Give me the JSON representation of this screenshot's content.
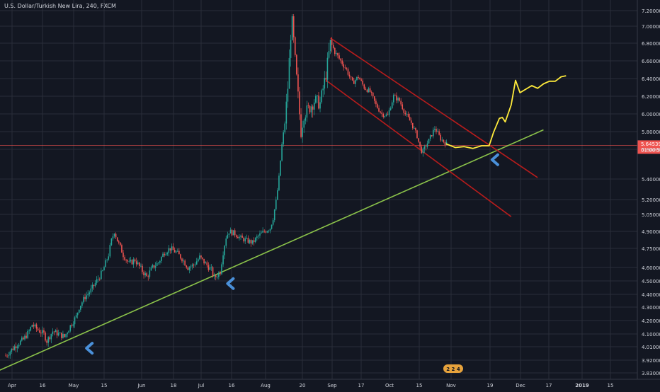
{
  "header": {
    "title": "U.S. Dollar/Turkish New Lira, 240, FXCM"
  },
  "chart_data": {
    "type": "candlestick",
    "title": "U.S. Dollar/Turkish New Lira, 240, FXCM",
    "symbol": "USDTRY",
    "interval": "240",
    "source": "FXCM",
    "ylim": [
      3.8,
      7.25
    ],
    "y_ticks": [
      "7.20000",
      "7.00000",
      "6.80000",
      "6.60000",
      "6.40000",
      "6.20000",
      "6.00000",
      "5.80000",
      "5.60000",
      "5.40000",
      "5.20000",
      "5.05000",
      "4.90000",
      "4.75000",
      "4.60000",
      "4.50000",
      "4.40000",
      "4.30000",
      "4.20000",
      "4.10000",
      "4.01000",
      "3.92000",
      "3.83000"
    ],
    "x_ticks": [
      "Apr",
      "16",
      "May",
      "15",
      "Jun",
      "18",
      "Jul",
      "16",
      "Aug",
      "20",
      "Sep",
      "17",
      "Oct",
      "15",
      "Nov",
      "19",
      "Dec",
      "17",
      "2019",
      "15"
    ],
    "current_price": "5.64539",
    "countdown": "01:00:51",
    "grid": true,
    "colors": {
      "background": "#131722",
      "grid": "#2a2e39",
      "up": "#26a69a",
      "down": "#ef5350",
      "trendline": "#8bc34a",
      "channel": "#b71c1c",
      "projection": "#ffeb3b",
      "arrow": "#4a90d9",
      "price_line": "#ef5350",
      "axis_text": "#d1d4dc"
    },
    "price_path": [
      [
        0,
        3.95
      ],
      [
        2,
        3.99
      ],
      [
        4,
        4.03
      ],
      [
        6,
        4.06
      ],
      [
        8,
        4.12
      ],
      [
        9,
        4.17
      ],
      [
        11,
        4.13
      ],
      [
        13,
        4.1
      ],
      [
        14,
        4.05
      ],
      [
        16,
        4.12
      ],
      [
        18,
        4.1
      ],
      [
        20,
        4.08
      ],
      [
        22,
        4.16
      ],
      [
        24,
        4.23
      ],
      [
        25,
        4.3
      ],
      [
        27,
        4.38
      ],
      [
        29,
        4.43
      ],
      [
        31,
        4.5
      ],
      [
        33,
        4.57
      ],
      [
        35,
        4.7
      ],
      [
        36,
        4.82
      ],
      [
        37,
        4.9
      ],
      [
        38,
        4.82
      ],
      [
        40,
        4.7
      ],
      [
        42,
        4.63
      ],
      [
        44,
        4.66
      ],
      [
        46,
        4.59
      ],
      [
        48,
        4.53
      ],
      [
        50,
        4.6
      ],
      [
        52,
        4.64
      ],
      [
        54,
        4.72
      ],
      [
        56,
        4.75
      ],
      [
        58,
        4.72
      ],
      [
        60,
        4.67
      ],
      [
        62,
        4.6
      ],
      [
        64,
        4.62
      ],
      [
        66,
        4.68
      ],
      [
        68,
        4.63
      ],
      [
        70,
        4.58
      ],
      [
        71,
        4.52
      ],
      [
        73,
        4.57
      ],
      [
        74,
        4.72
      ],
      [
        75,
        4.85
      ],
      [
        76,
        4.9
      ],
      [
        78,
        4.88
      ],
      [
        80,
        4.84
      ],
      [
        82,
        4.82
      ],
      [
        84,
        4.8
      ],
      [
        86,
        4.86
      ],
      [
        88,
        4.9
      ],
      [
        90,
        4.93
      ],
      [
        91,
        5.02
      ],
      [
        92,
        5.18
      ],
      [
        93,
        5.4
      ],
      [
        94,
        5.65
      ],
      [
        95,
        5.9
      ],
      [
        96,
        6.3
      ],
      [
        97,
        6.9
      ],
      [
        97.5,
        7.05
      ],
      [
        98.5,
        6.6
      ],
      [
        99.5,
        6.2
      ],
      [
        100.5,
        5.8
      ],
      [
        101.5,
        6.0
      ],
      [
        103,
        6.05
      ],
      [
        105,
        6.15
      ],
      [
        107,
        6.12
      ],
      [
        109,
        6.45
      ],
      [
        110.5,
        6.8
      ],
      [
        112,
        6.7
      ],
      [
        114,
        6.6
      ],
      [
        116,
        6.5
      ],
      [
        118,
        6.35
      ],
      [
        120,
        6.42
      ],
      [
        122,
        6.3
      ],
      [
        124,
        6.25
      ],
      [
        126,
        6.1
      ],
      [
        128,
        6.0
      ],
      [
        130,
        5.98
      ],
      [
        132,
        6.2
      ],
      [
        134,
        6.15
      ],
      [
        136,
        6.0
      ],
      [
        138,
        5.9
      ],
      [
        140,
        5.75
      ],
      [
        141,
        5.62
      ],
      [
        142,
        5.58
      ],
      [
        144,
        5.7
      ],
      [
        146,
        5.84
      ],
      [
        148,
        5.72
      ],
      [
        150,
        5.66
      ]
    ],
    "projection": [
      [
        150,
        5.66
      ],
      [
        153,
        5.62
      ],
      [
        156,
        5.63
      ],
      [
        159,
        5.61
      ],
      [
        162,
        5.64
      ],
      [
        164.5,
        5.64
      ],
      [
        166,
        5.79
      ],
      [
        168,
        5.95
      ],
      [
        169,
        5.96
      ],
      [
        170,
        5.91
      ],
      [
        172,
        6.1
      ],
      [
        173.5,
        6.38
      ],
      [
        175,
        6.24
      ],
      [
        177,
        6.28
      ],
      [
        179,
        6.32
      ],
      [
        181,
        6.29
      ],
      [
        183,
        6.34
      ],
      [
        185,
        6.37
      ],
      [
        187,
        6.37
      ],
      [
        189,
        6.42
      ],
      [
        190.5,
        6.43
      ]
    ],
    "green_trendline": [
      [
        -3,
        3.84
      ],
      [
        183,
        5.82
      ]
    ],
    "channel_upper": [
      [
        110.5,
        6.86
      ],
      [
        181,
        5.41
      ]
    ],
    "channel_lower": [
      [
        109,
        6.38
      ],
      [
        172,
        5.03
      ]
    ],
    "price_level": 5.645,
    "arrows": [
      {
        "x": 28,
        "y": 4.0,
        "direction": "left"
      },
      {
        "x": 76,
        "y": 4.48,
        "direction": "left"
      },
      {
        "x": 166,
        "y": 5.53,
        "direction": "left"
      }
    ],
    "badge": "2 2 4"
  }
}
